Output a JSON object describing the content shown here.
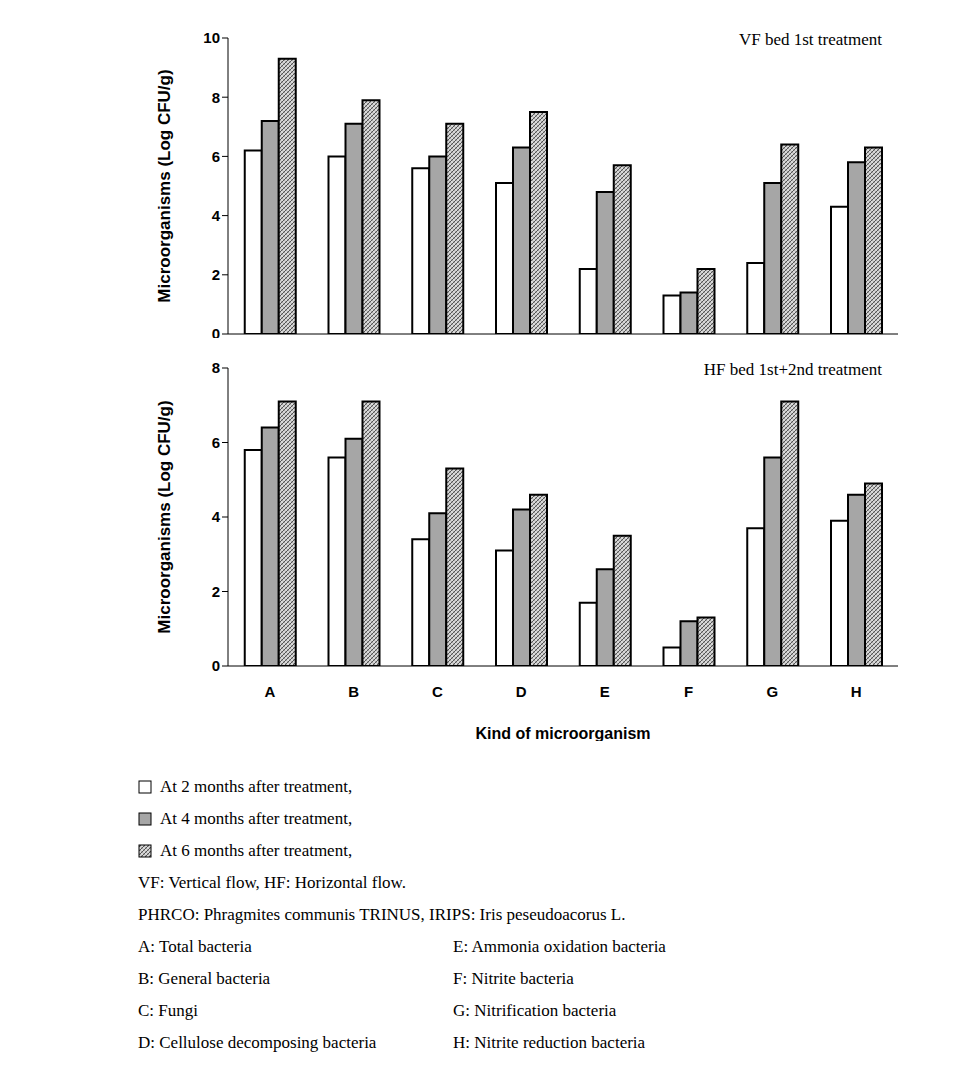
{
  "chart_data": [
    {
      "type": "bar",
      "title": "VF bed 1st treatment",
      "y_label": "Microorganisms (Log CFU/g)",
      "categories": [
        "A",
        "B",
        "C",
        "D",
        "E",
        "F",
        "G",
        "H"
      ],
      "series": [
        {
          "name": "At 2 months after treatment,",
          "color": "#ffffff",
          "values": [
            6.2,
            6.0,
            5.6,
            5.1,
            2.2,
            1.3,
            2.4,
            4.3
          ]
        },
        {
          "name": "At 4 months after treatment,",
          "color": "#a6a6a6",
          "values": [
            7.2,
            7.1,
            6.0,
            6.3,
            4.8,
            1.4,
            5.1,
            5.8
          ]
        },
        {
          "name": "At 6 months after treatment,",
          "color": "#d9d9d9",
          "values": [
            9.3,
            7.9,
            7.1,
            7.5,
            5.7,
            2.2,
            6.4,
            6.3
          ]
        }
      ],
      "ylim": [
        0,
        10
      ],
      "yticks": [
        0,
        2,
        4,
        6,
        8,
        10
      ],
      "tick_labels": "y"
    },
    {
      "type": "bar",
      "title": "HF bed 1st+2nd treatment",
      "y_label": "Microorganisms (Log CFU/g)",
      "x_label": "Kind of microorganism",
      "categories": [
        "A",
        "B",
        "C",
        "D",
        "E",
        "F",
        "G",
        "H"
      ],
      "series": [
        {
          "name": "At 2 months after treatment,",
          "color": "#ffffff",
          "values": [
            5.8,
            5.6,
            3.4,
            3.1,
            1.7,
            0.5,
            3.7,
            3.9
          ]
        },
        {
          "name": "At 4 months after treatment,",
          "color": "#a6a6a6",
          "values": [
            6.4,
            6.1,
            4.1,
            4.2,
            2.6,
            1.2,
            5.6,
            4.6
          ]
        },
        {
          "name": "At 6 months after treatment,",
          "color": "#d9d9d9",
          "values": [
            7.1,
            7.1,
            5.3,
            4.6,
            3.5,
            1.3,
            7.1,
            4.9
          ]
        }
      ],
      "ylim": [
        0,
        8
      ],
      "yticks": [
        0,
        2,
        4,
        6,
        8
      ]
    }
  ],
  "notes": [
    "VF: Vertical flow, HF: Horizontal flow.",
    "PHRCO: Phragmites communis TRINUS, IRIPS: Iris peseudoacorus L."
  ],
  "key": [
    "A: Total bacteria",
    "B: General bacteria",
    "C: Fungi",
    "D: Cellulose decomposing bacteria",
    "E: Ammonia oxidation bacteria",
    "F: Nitrite bacteria",
    "G: Nitrification bacteria",
    "H: Nitrite reduction bacteria"
  ]
}
